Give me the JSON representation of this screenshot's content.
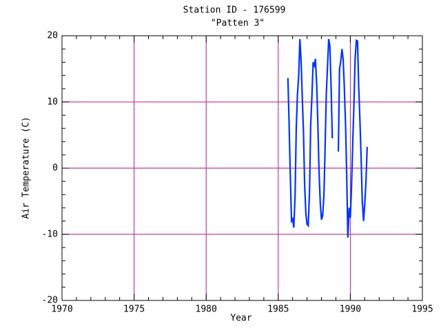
{
  "chart_data": {
    "type": "line",
    "title": "Station ID - 176599",
    "subtitle": "\"Patten 3\"",
    "x_label": "Year",
    "y_label": "Air Temperature (C)",
    "x": [
      1985.67,
      1985.75,
      1985.83,
      1985.92,
      1986.0,
      1986.08,
      1986.17,
      1986.25,
      1986.33,
      1986.42,
      1986.5,
      1986.58,
      1986.67,
      1986.75,
      1986.83,
      1986.92,
      1987.0,
      1987.08,
      1987.17,
      1987.25,
      1987.33,
      1987.42,
      1987.5,
      1987.58,
      1987.67,
      1987.75,
      1987.83,
      1987.92,
      1988.0,
      1988.08,
      1988.17,
      1988.25,
      1988.33,
      1988.42,
      1988.5,
      1988.58,
      1988.67,
      1988.75,
      1988.83,
      1988.92,
      1989.0,
      1989.08,
      1989.17,
      1989.25,
      1989.33,
      1989.42,
      1989.5,
      1989.58,
      1989.67,
      1989.75,
      1989.83,
      1989.92,
      1990.0,
      1990.08,
      1990.17,
      1990.25,
      1990.33,
      1990.42,
      1990.5,
      1990.58,
      1990.67,
      1990.75,
      1990.83,
      1990.92,
      1991.0,
      1991.08,
      1991.17
    ],
    "series": [
      {
        "name": "Air Temperature",
        "color": "#0033ff",
        "values": [
          13.6,
          7.0,
          -0.5,
          -8.0,
          -7.7,
          -9.0,
          -4.0,
          6.0,
          11.0,
          14.0,
          19.5,
          16.5,
          10.5,
          5.5,
          -2.5,
          -7.0,
          -8.5,
          -8.7,
          -3.5,
          6.5,
          10.5,
          16.0,
          15.5,
          16.5,
          12.5,
          6.5,
          -0.5,
          -5.5,
          -7.8,
          -7.2,
          -4.0,
          3.0,
          11.0,
          15.5,
          19.5,
          18.5,
          12.0,
          4.5,
          null,
          null,
          null,
          null,
          2.5,
          15.0,
          16.0,
          18.0,
          16.5,
          12.5,
          6.5,
          -1.2,
          -10.5,
          -6.0,
          -7.5,
          -3.0,
          4.0,
          9.5,
          16.5,
          19.3,
          19.2,
          12.5,
          7.0,
          1.5,
          -5.0,
          -8.0,
          -5.5,
          -2.3,
          3.2
        ]
      }
    ],
    "xlim": [
      1970,
      1995
    ],
    "xticks": [
      1970,
      1975,
      1980,
      1985,
      1990,
      1995
    ],
    "ylim": [
      -20,
      20
    ],
    "yticks": [
      -20,
      -10,
      0,
      10,
      20
    ],
    "grid": true,
    "grid_color": "#c0167f"
  }
}
